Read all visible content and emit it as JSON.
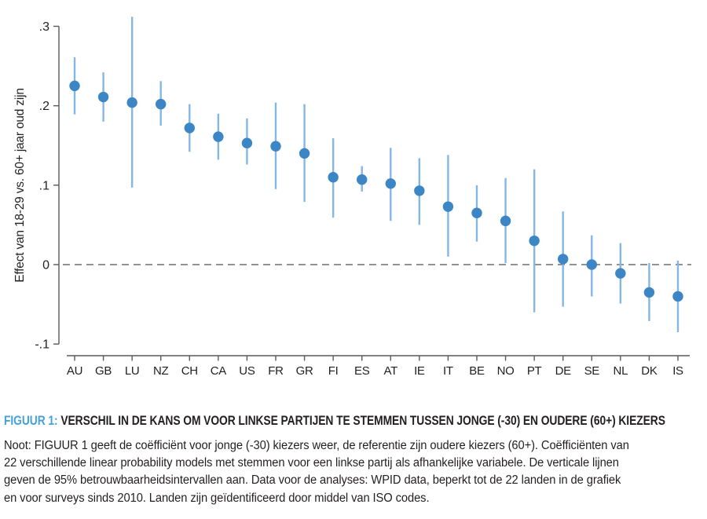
{
  "chart_data": {
    "type": "scatter",
    "error_bars": true,
    "title": "FIGUUR 1: VERSCHIL IN DE KANS OM VOOR LINKSE PARTIJEN TE STEMMEN TUSSEN JONGE (-30) EN OUDERE (60+) KIEZERS",
    "xlabel": "",
    "ylabel": "Effect van 18-29 vs. 60+ jaar oud zijn",
    "ylim": [
      -0.1,
      0.3
    ],
    "grid": false,
    "legend": "none",
    "zero_line": {
      "value": 0,
      "style": "dashed"
    },
    "yticks": [
      {
        "label": ".3",
        "value": 0.3
      },
      {
        "label": ".2",
        "value": 0.2
      },
      {
        "label": ".1",
        "value": 0.1
      },
      {
        "label": "0",
        "value": 0.0
      },
      {
        "label": "-.1",
        "value": -0.1
      }
    ],
    "categories": [
      "AU",
      "GB",
      "LU",
      "NZ",
      "CH",
      "CA",
      "US",
      "FR",
      "GR",
      "FI",
      "ES",
      "AT",
      "IE",
      "IT",
      "BE",
      "NO",
      "PT",
      "DE",
      "SE",
      "NL",
      "DK",
      "IS"
    ],
    "points": [
      {
        "country": "AU",
        "est": 0.225,
        "ci_low": 0.189,
        "ci_high": 0.261
      },
      {
        "country": "GB",
        "est": 0.211,
        "ci_low": 0.18,
        "ci_high": 0.242
      },
      {
        "country": "LU",
        "est": 0.204,
        "ci_low": 0.097,
        "ci_high": 0.312
      },
      {
        "country": "NZ",
        "est": 0.202,
        "ci_low": 0.175,
        "ci_high": 0.231
      },
      {
        "country": "CH",
        "est": 0.172,
        "ci_low": 0.142,
        "ci_high": 0.202
      },
      {
        "country": "CA",
        "est": 0.161,
        "ci_low": 0.132,
        "ci_high": 0.19
      },
      {
        "country": "US",
        "est": 0.153,
        "ci_low": 0.126,
        "ci_high": 0.184
      },
      {
        "country": "FR",
        "est": 0.149,
        "ci_low": 0.095,
        "ci_high": 0.204
      },
      {
        "country": "GR",
        "est": 0.14,
        "ci_low": 0.079,
        "ci_high": 0.202
      },
      {
        "country": "FI",
        "est": 0.11,
        "ci_low": 0.059,
        "ci_high": 0.159
      },
      {
        "country": "ES",
        "est": 0.107,
        "ci_low": 0.092,
        "ci_high": 0.124
      },
      {
        "country": "AT",
        "est": 0.102,
        "ci_low": 0.055,
        "ci_high": 0.147
      },
      {
        "country": "IE",
        "est": 0.093,
        "ci_low": 0.05,
        "ci_high": 0.134
      },
      {
        "country": "IT",
        "est": 0.073,
        "ci_low": 0.01,
        "ci_high": 0.138
      },
      {
        "country": "BE",
        "est": 0.065,
        "ci_low": 0.029,
        "ci_high": 0.1
      },
      {
        "country": "NO",
        "est": 0.055,
        "ci_low": 0.002,
        "ci_high": 0.109
      },
      {
        "country": "PT",
        "est": 0.03,
        "ci_low": -0.06,
        "ci_high": 0.12
      },
      {
        "country": "DE",
        "est": 0.007,
        "ci_low": -0.053,
        "ci_high": 0.067
      },
      {
        "country": "SE",
        "est": 0.0,
        "ci_low": -0.04,
        "ci_high": 0.037
      },
      {
        "country": "NL",
        "est": -0.011,
        "ci_low": -0.049,
        "ci_high": 0.027
      },
      {
        "country": "DK",
        "est": -0.035,
        "ci_low": -0.071,
        "ci_high": 0.002
      },
      {
        "country": "IS",
        "est": -0.04,
        "ci_low": -0.085,
        "ci_high": 0.005
      }
    ],
    "colors": {
      "point": "#3c86c6",
      "ci_line": "#85b7e6",
      "axis": "#58595b",
      "zero_line": "#6d6e71",
      "text": "#231f20"
    }
  },
  "caption": {
    "prefix": "FIGUUR 1:",
    "text": "VERSCHIL IN DE KANS OM VOOR LINKSE PARTIJEN TE STEMMEN TUSSEN JONGE (-30) EN OUDERE (60+) KIEZERS",
    "accent_color": "#45a2d8"
  },
  "note": {
    "lines": [
      "Noot: FIGUUR 1 geeft de coëfficiënt voor jonge (-30) kiezers weer, de referentie zijn oudere kiezers (60+). Coëfficiënten van",
      "22 verschillende linear probability models met stemmen voor een linkse partij als afhankelijke variabele. De verticale lijnen",
      "geven de 95% betrouwbaarheidsintervallen aan. Data voor de analyses: WPID data, beperkt tot de 22 landen in de grafiek",
      "en voor surveys sinds 2010. Landen zijn geïdentificeerd door middel van ISO codes."
    ]
  }
}
